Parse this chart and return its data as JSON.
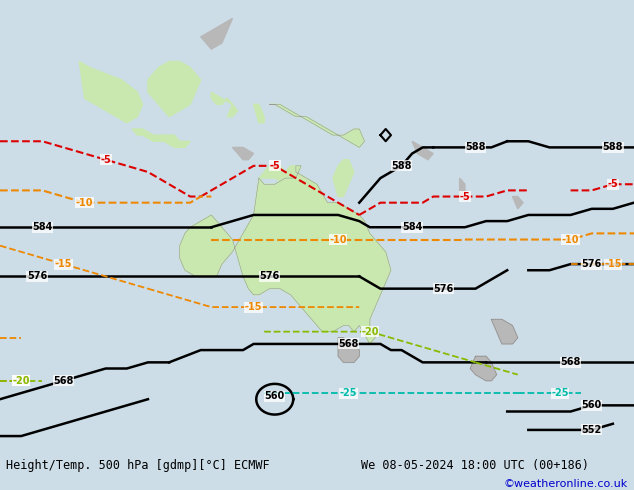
{
  "title_left": "Height/Temp. 500 hPa [gdmp][°C] ECMWF",
  "title_right": "We 08-05-2024 18:00 UTC (00+186)",
  "credit": "©weatheronline.co.uk",
  "bg_color": "#ccdde8",
  "land_green": "#c8e8b0",
  "land_grey": "#b8b8b8",
  "ocean_color": "#ccdde8",
  "bar_color": "#e0e0e0",
  "black": "#000000",
  "red": "#dd0000",
  "orange": "#ee8800",
  "yellow_green": "#88bb00",
  "teal": "#00bbaa",
  "blue": "#0000cc",
  "fig_w": 6.34,
  "fig_h": 4.9,
  "dpi": 100
}
